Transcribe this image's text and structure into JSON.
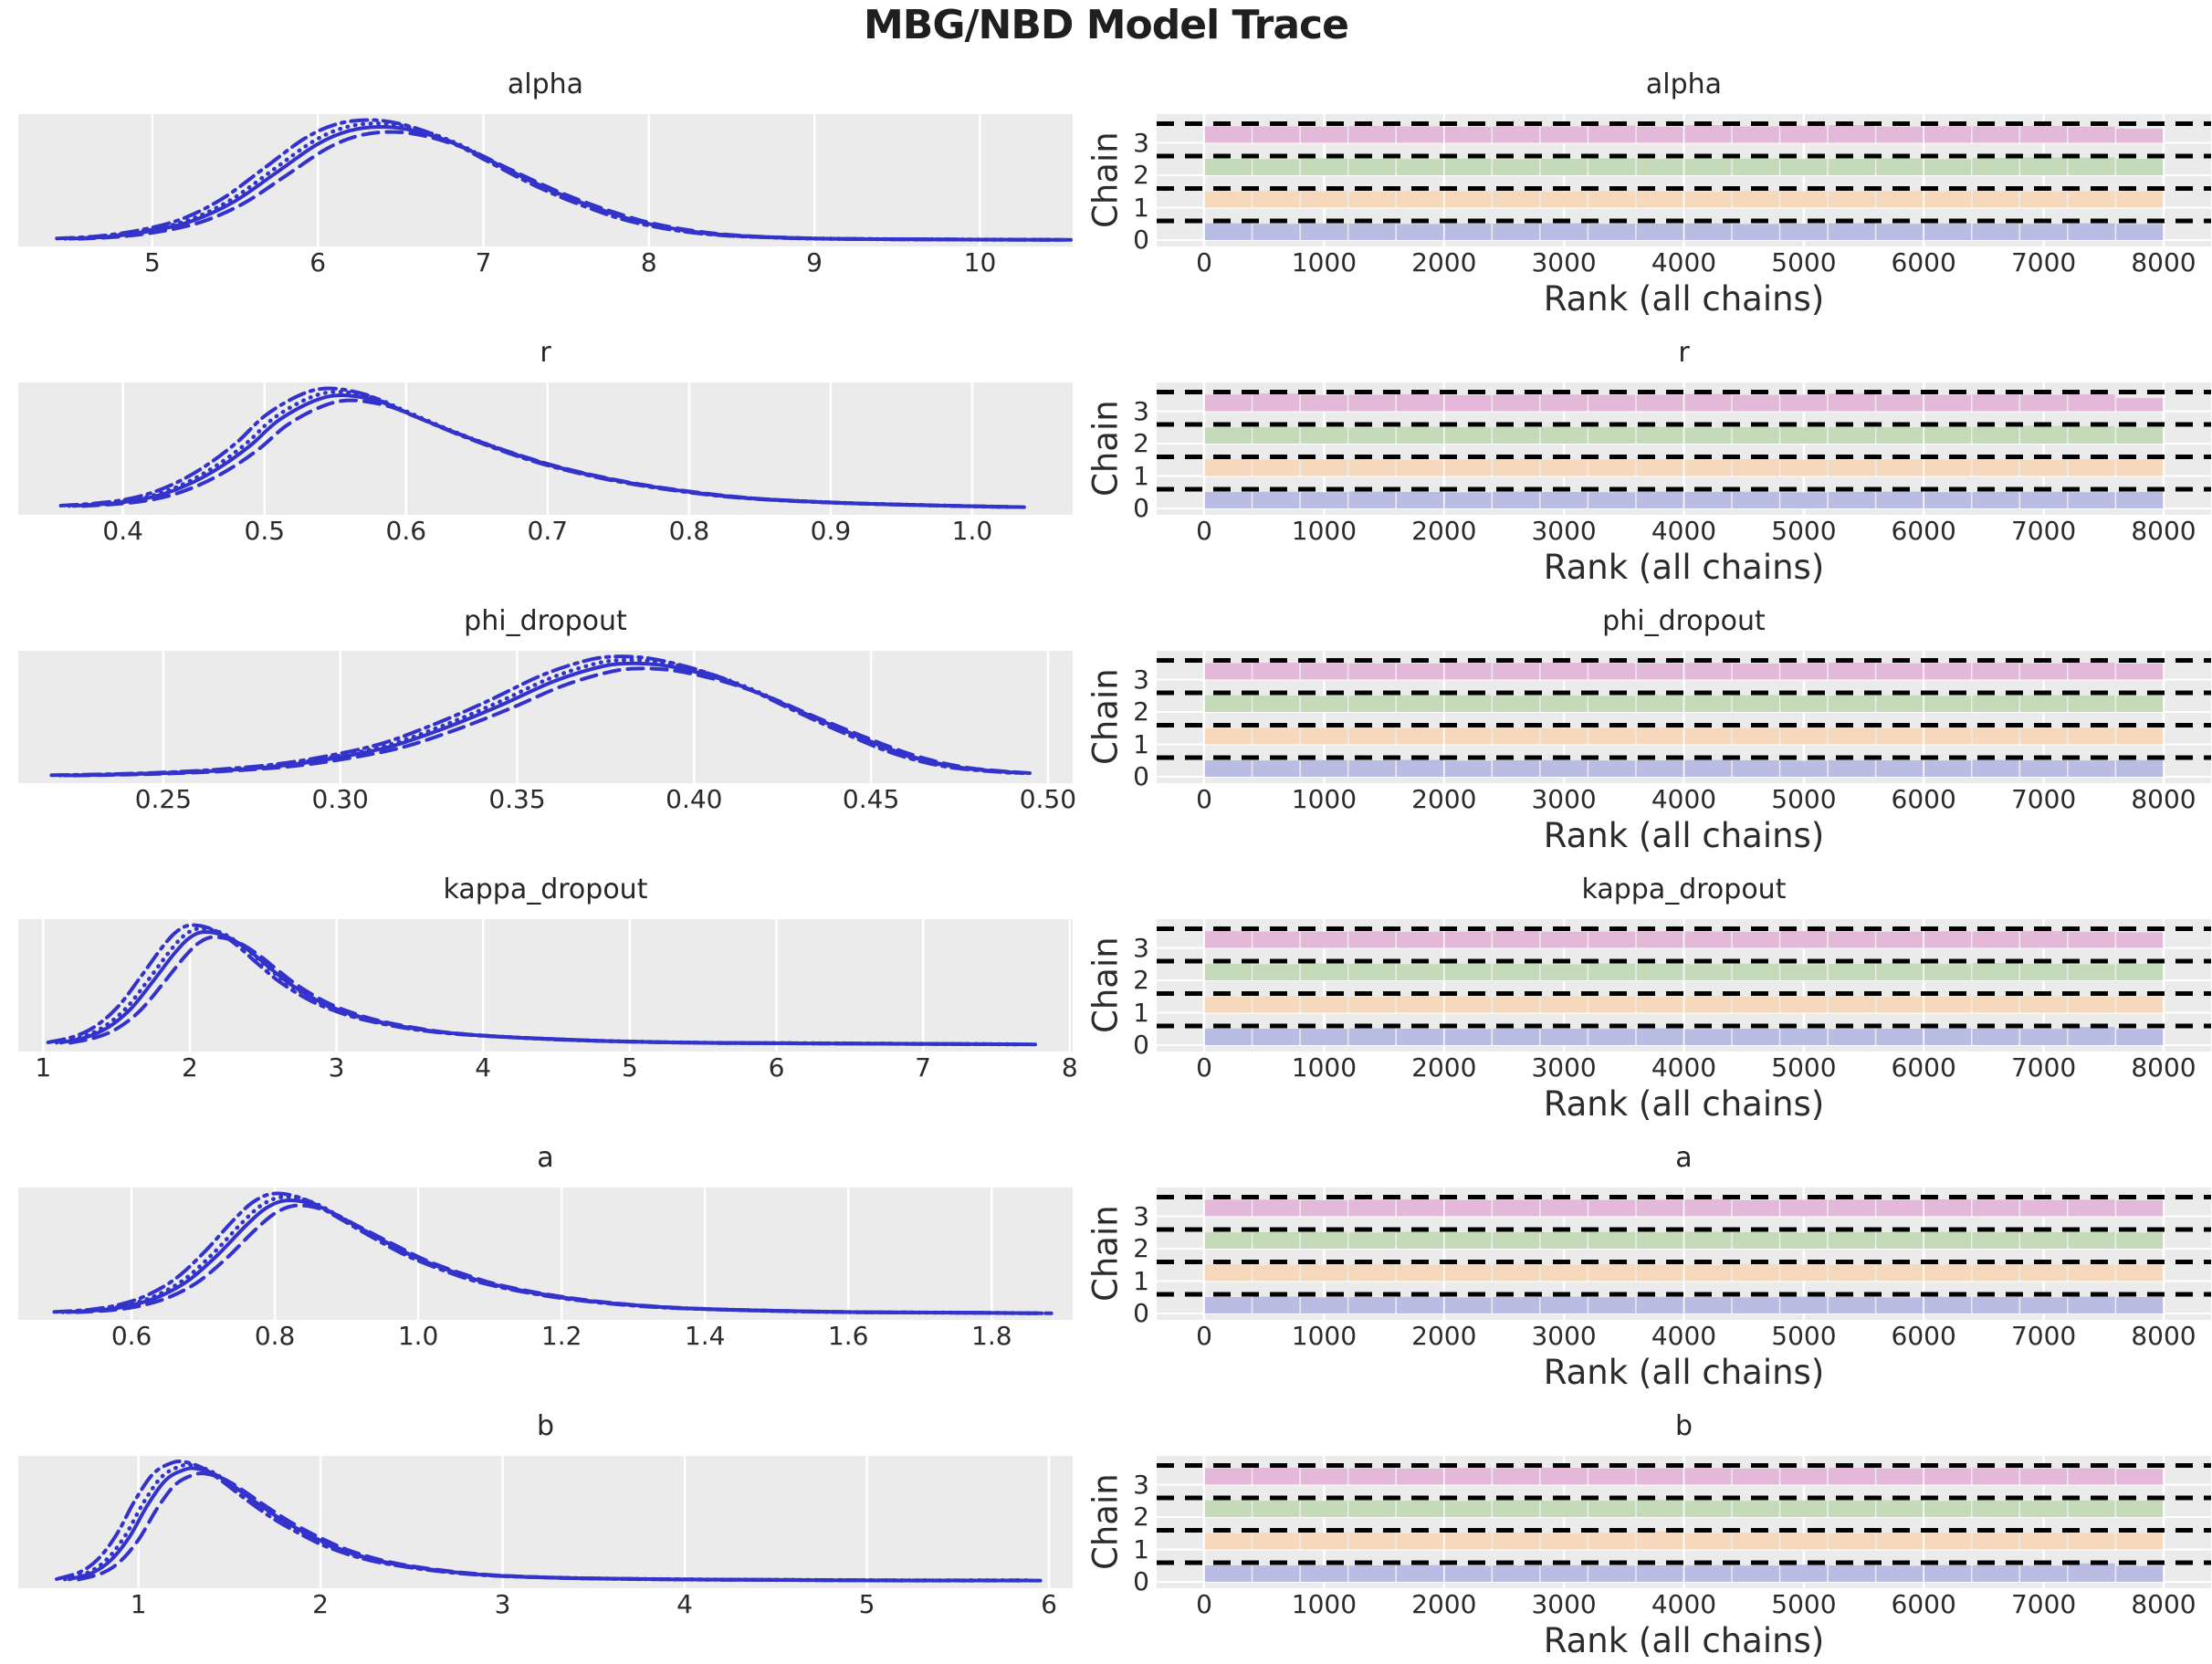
{
  "figure": {
    "title": "MBG/NBD Model Trace",
    "background_color": "#ffffff",
    "axes_background_color": "#ebebeb",
    "grid_color": "#ffffff",
    "text_color": "#262626",
    "kde_line_color": "#3333cc",
    "rank_reference_line_color": "#000000",
    "xlabel_rank": "Rank (all chains)",
    "ylabel_rank": "Chain",
    "chain_tick_labels": [
      "0",
      "1",
      "2",
      "3"
    ],
    "chain_colors": [
      "#b9bce3",
      "#f6d9bd",
      "#c4dab8",
      "#e4b8d8"
    ],
    "rank_tick_labels": [
      "0",
      "1000",
      "2000",
      "3000",
      "4000",
      "5000",
      "6000",
      "7000",
      "8000"
    ],
    "rank_tick_values": [
      0,
      1000,
      2000,
      3000,
      4000,
      5000,
      6000,
      7000,
      8000
    ],
    "rank_axis": {
      "xmin": -396,
      "xmax": 8396,
      "bins": 20,
      "bin_start": 0,
      "bin_end": 8000
    },
    "chains": [
      {
        "name": "chain-0",
        "style": "solid",
        "dash": "",
        "amp": 1.0,
        "dx": 0.0
      },
      {
        "name": "chain-1",
        "style": "dashed",
        "dash": "17 9",
        "amp": 0.955,
        "dx": 0.009
      },
      {
        "name": "chain-2",
        "style": "dotted",
        "dash": "0.5 8",
        "amp": 1.03,
        "dx": -0.004
      },
      {
        "name": "chain-3",
        "style": "dashdot",
        "dash": "18 7 3.5 7",
        "amp": 1.06,
        "dx": -0.012
      }
    ]
  },
  "chart_data": [
    {
      "type": "kde+rank-histogram",
      "title": "alpha",
      "kde": {
        "xmin": 4.19,
        "xmax": 10.56,
        "tick_labels": [
          "5",
          "6",
          "7",
          "8",
          "9",
          "10"
        ],
        "tick_values": [
          5,
          6,
          7,
          8,
          9,
          10
        ],
        "x": [
          4.5,
          4.75,
          5.0,
          5.25,
          5.5,
          5.75,
          6.0,
          6.2,
          6.4,
          6.6,
          6.85,
          7.1,
          7.4,
          7.7,
          8.0,
          8.4,
          8.9,
          9.5,
          10.5
        ],
        "y": [
          0.02,
          0.04,
          0.09,
          0.18,
          0.35,
          0.6,
          0.85,
          0.97,
          1.0,
          0.96,
          0.84,
          0.66,
          0.45,
          0.28,
          0.15,
          0.06,
          0.025,
          0.015,
          0.01
        ]
      },
      "rank_heights": [
        [
          1.02,
          0.99,
          1.01,
          1.0,
          0.98,
          1.01,
          1.0,
          1.02,
          0.99,
          1.0,
          1.01,
          0.98,
          1.0,
          1.02,
          0.99,
          1.01,
          1.0,
          0.99,
          1.02,
          0.98
        ],
        [
          0.99,
          1.02,
          1.0,
          0.98,
          1.01,
          1.0,
          1.02,
          0.99,
          1.01,
          1.0,
          0.98,
          1.02,
          1.0,
          0.99,
          1.01,
          1.0,
          1.03,
          0.98,
          1.0,
          0.99
        ],
        [
          1.0,
          0.98,
          1.02,
          1.0,
          0.99,
          1.01,
          0.98,
          1.0,
          1.02,
          0.99,
          1.0,
          1.01,
          0.99,
          1.0,
          1.02,
          0.98,
          1.05,
          1.09,
          1.08,
          1.0
        ],
        [
          1.01,
          1.0,
          0.99,
          1.02,
          1.0,
          0.98,
          1.01,
          1.0,
          1.06,
          0.99,
          1.07,
          1.0,
          1.04,
          1.08,
          0.99,
          1.01,
          1.0,
          1.02,
          0.99,
          0.86
        ]
      ]
    },
    {
      "type": "kde+rank-histogram",
      "title": "r",
      "kde": {
        "xmin": 0.326,
        "xmax": 1.071,
        "tick_labels": [
          "0.4",
          "0.5",
          "0.6",
          "0.7",
          "0.8",
          "0.9",
          "1.0"
        ],
        "tick_values": [
          0.4,
          0.5,
          0.6,
          0.7,
          0.8,
          0.9,
          1.0
        ],
        "x": [
          0.365,
          0.39,
          0.41,
          0.43,
          0.45,
          0.47,
          0.49,
          0.51,
          0.535,
          0.555,
          0.58,
          0.6,
          0.625,
          0.65,
          0.68,
          0.71,
          0.75,
          0.79,
          0.84,
          0.9,
          0.97,
          1.03
        ],
        "y": [
          0.03,
          0.05,
          0.08,
          0.14,
          0.24,
          0.38,
          0.56,
          0.78,
          0.95,
          1.0,
          0.95,
          0.85,
          0.72,
          0.6,
          0.47,
          0.36,
          0.25,
          0.17,
          0.1,
          0.06,
          0.035,
          0.02
        ]
      },
      "rank_heights": [
        [
          1.0,
          1.01,
          0.99,
          1.02,
          1.0,
          0.98,
          1.01,
          1.0,
          0.99,
          1.02,
          1.0,
          1.01,
          0.98,
          1.0,
          1.02,
          0.99,
          1.0,
          1.01,
          0.99,
          1.0
        ],
        [
          1.02,
          0.99,
          1.0,
          1.01,
          0.98,
          1.0,
          1.02,
          0.99,
          1.01,
          1.0,
          0.99,
          1.02,
          1.0,
          0.98,
          1.01,
          1.0,
          1.02,
          0.99,
          1.0,
          1.01
        ],
        [
          0.99,
          1.01,
          1.0,
          0.98,
          1.02,
          1.0,
          0.99,
          1.01,
          1.0,
          1.02,
          0.98,
          1.0,
          1.01,
          0.99,
          1.0,
          1.02,
          1.0,
          1.08,
          1.06,
          0.99
        ],
        [
          1.01,
          1.08,
          0.99,
          1.0,
          1.02,
          0.98,
          1.0,
          1.01,
          0.99,
          1.0,
          1.05,
          0.99,
          1.0,
          1.06,
          1.0,
          0.99,
          1.01,
          1.0,
          1.02,
          0.8
        ]
      ]
    },
    {
      "type": "kde+rank-histogram",
      "title": "phi_dropout",
      "kde": {
        "xmin": 0.209,
        "xmax": 0.507,
        "tick_labels": [
          "0.25",
          "0.30",
          "0.35",
          "0.40",
          "0.45",
          "0.50"
        ],
        "tick_values": [
          0.25,
          0.3,
          0.35,
          0.4,
          0.45,
          0.5
        ],
        "x": [
          0.222,
          0.24,
          0.255,
          0.27,
          0.285,
          0.3,
          0.315,
          0.33,
          0.345,
          0.36,
          0.372,
          0.38,
          0.39,
          0.4,
          0.41,
          0.42,
          0.43,
          0.445,
          0.46,
          0.475,
          0.493
        ],
        "y": [
          0.02,
          0.03,
          0.045,
          0.07,
          0.11,
          0.18,
          0.28,
          0.44,
          0.63,
          0.84,
          0.96,
          1.0,
          0.99,
          0.93,
          0.84,
          0.72,
          0.58,
          0.38,
          0.2,
          0.09,
          0.04
        ]
      },
      "rank_heights": [
        [
          1.0,
          0.99,
          1.01,
          1.0,
          1.02,
          0.98,
          1.0,
          1.01,
          0.99,
          1.0,
          1.02,
          1.0,
          0.98,
          1.01,
          1.0,
          0.99,
          1.02,
          1.0,
          0.99,
          1.01
        ],
        [
          0.98,
          1.01,
          1.0,
          1.02,
          0.99,
          1.0,
          1.01,
          0.98,
          1.0,
          1.02,
          0.99,
          1.0,
          1.01,
          1.0,
          0.98,
          1.02,
          1.0,
          0.99,
          1.01,
          1.0
        ],
        [
          1.01,
          1.0,
          0.98,
          1.0,
          1.01,
          1.02,
          0.99,
          1.0,
          0.98,
          1.01,
          1.0,
          1.02,
          0.99,
          1.0,
          1.01,
          0.98,
          1.0,
          1.02,
          1.0,
          0.99
        ],
        [
          1.0,
          1.02,
          1.0,
          0.99,
          0.98,
          1.01,
          1.0,
          1.02,
          1.0,
          0.99,
          1.01,
          0.98,
          1.0,
          1.02,
          0.99,
          1.0,
          1.01,
          0.99,
          1.03,
          0.97
        ]
      ]
    },
    {
      "type": "kde+rank-histogram",
      "title": "kappa_dropout",
      "kde": {
        "xmin": 0.83,
        "xmax": 8.02,
        "tick_labels": [
          "1",
          "2",
          "3",
          "4",
          "5",
          "6",
          "7",
          "8"
        ],
        "tick_values": [
          1,
          2,
          3,
          4,
          5,
          6,
          7,
          8
        ],
        "x": [
          1.12,
          1.3,
          1.45,
          1.6,
          1.75,
          1.9,
          2.0,
          2.1,
          2.25,
          2.4,
          2.55,
          2.7,
          2.9,
          3.1,
          3.3,
          3.6,
          3.9,
          4.3,
          4.8,
          5.4,
          6.0,
          6.8,
          7.7
        ],
        "y": [
          0.03,
          0.08,
          0.17,
          0.33,
          0.57,
          0.82,
          0.95,
          1.0,
          0.96,
          0.84,
          0.68,
          0.53,
          0.38,
          0.28,
          0.21,
          0.14,
          0.1,
          0.07,
          0.045,
          0.03,
          0.025,
          0.02,
          0.015
        ]
      },
      "rank_heights": [
        [
          1.01,
          1.0,
          0.99,
          1.02,
          1.0,
          0.98,
          1.01,
          1.0,
          0.99,
          1.02,
          0.98,
          1.0,
          1.01,
          0.99,
          1.0,
          1.02,
          1.0,
          0.99,
          1.1,
          0.98
        ],
        [
          0.99,
          1.01,
          1.0,
          0.98,
          1.02,
          1.0,
          0.99,
          1.01,
          1.0,
          0.98,
          1.02,
          0.99,
          1.0,
          1.01,
          0.99,
          1.0,
          1.02,
          1.0,
          0.99,
          1.01
        ],
        [
          1.0,
          0.98,
          1.02,
          1.0,
          0.99,
          1.01,
          1.0,
          0.98,
          1.02,
          1.0,
          0.99,
          1.01,
          0.98,
          1.0,
          1.02,
          0.99,
          1.05,
          1.0,
          0.98,
          1.0
        ],
        [
          1.02,
          1.0,
          0.99,
          1.01,
          0.98,
          1.0,
          1.04,
          0.99,
          1.0,
          1.01,
          1.0,
          0.98,
          1.02,
          1.0,
          0.99,
          1.01,
          1.0,
          1.02,
          0.98,
          0.95
        ]
      ]
    },
    {
      "type": "kde+rank-histogram",
      "title": "a",
      "kde": {
        "xmin": 0.442,
        "xmax": 1.913,
        "tick_labels": [
          "0.6",
          "0.8",
          "1.0",
          "1.2",
          "1.4",
          "1.6",
          "1.8"
        ],
        "tick_values": [
          0.6,
          0.8,
          1.0,
          1.2,
          1.4,
          1.6,
          1.8
        ],
        "x": [
          0.51,
          0.56,
          0.6,
          0.64,
          0.68,
          0.72,
          0.76,
          0.79,
          0.82,
          0.86,
          0.9,
          0.95,
          1.0,
          1.05,
          1.1,
          1.17,
          1.25,
          1.35,
          1.47,
          1.6,
          1.75,
          1.87
        ],
        "y": [
          0.02,
          0.04,
          0.08,
          0.16,
          0.3,
          0.52,
          0.78,
          0.94,
          1.0,
          0.95,
          0.82,
          0.65,
          0.49,
          0.37,
          0.27,
          0.18,
          0.11,
          0.06,
          0.035,
          0.02,
          0.015,
          0.01
        ]
      },
      "rank_heights": [
        [
          1.0,
          1.02,
          0.99,
          1.0,
          1.01,
          0.98,
          1.0,
          1.02,
          0.99,
          1.01,
          1.0,
          0.99,
          1.02,
          1.0,
          0.98,
          1.01,
          1.0,
          0.99,
          1.02,
          1.0
        ],
        [
          1.01,
          0.99,
          1.0,
          1.02,
          0.98,
          1.0,
          1.01,
          0.99,
          1.02,
          1.0,
          0.99,
          1.01,
          1.0,
          0.98,
          1.02,
          1.0,
          0.99,
          1.01,
          1.0,
          0.99
        ],
        [
          0.99,
          1.0,
          1.01,
          0.98,
          1.02,
          1.0,
          0.99,
          1.0,
          1.01,
          0.99,
          1.02,
          1.0,
          0.98,
          1.01,
          1.0,
          1.02,
          0.99,
          1.0,
          1.01,
          0.98
        ],
        [
          1.0,
          1.01,
          0.98,
          1.0,
          1.02,
          0.99,
          1.0,
          1.01,
          0.99,
          1.0,
          1.02,
          0.98,
          1.0,
          1.01,
          0.99,
          1.02,
          1.0,
          0.99,
          1.01,
          0.97
        ]
      ]
    },
    {
      "type": "kde+rank-histogram",
      "title": "b",
      "kde": {
        "xmin": 0.34,
        "xmax": 6.13,
        "tick_labels": [
          "1",
          "2",
          "3",
          "4",
          "5",
          "6"
        ],
        "tick_values": [
          1,
          2,
          3,
          4,
          5,
          6
        ],
        "x": [
          0.62,
          0.75,
          0.85,
          0.95,
          1.05,
          1.15,
          1.25,
          1.32,
          1.42,
          1.52,
          1.65,
          1.8,
          1.95,
          2.1,
          2.3,
          2.5,
          2.75,
          3.0,
          3.4,
          3.9,
          4.5,
          5.2,
          5.9
        ],
        "y": [
          0.03,
          0.09,
          0.2,
          0.4,
          0.68,
          0.9,
          0.99,
          1.0,
          0.95,
          0.85,
          0.7,
          0.54,
          0.41,
          0.3,
          0.2,
          0.14,
          0.09,
          0.06,
          0.04,
          0.03,
          0.025,
          0.02,
          0.02
        ]
      },
      "rank_heights": [
        [
          1.0,
          0.99,
          1.01,
          1.0,
          1.02,
          0.98,
          1.0,
          1.01,
          0.99,
          1.0,
          1.01,
          0.99,
          1.04,
          1.0,
          0.98,
          1.01,
          1.0,
          0.99,
          1.12,
          0.97
        ],
        [
          0.99,
          1.01,
          1.0,
          1.02,
          0.98,
          1.0,
          1.01,
          0.99,
          1.0,
          1.1,
          0.99,
          1.01,
          1.0,
          0.98,
          1.02,
          1.0,
          0.99,
          1.01,
          1.0,
          0.99
        ],
        [
          1.02,
          1.0,
          0.99,
          1.01,
          1.0,
          0.98,
          1.02,
          1.0,
          0.99,
          1.04,
          1.0,
          0.99,
          1.01,
          1.0,
          1.02,
          0.98,
          1.0,
          0.99,
          1.01,
          1.0
        ],
        [
          1.0,
          1.02,
          0.99,
          1.0,
          0.98,
          1.01,
          1.0,
          1.02,
          0.99,
          1.0,
          1.01,
          0.98,
          1.0,
          1.02,
          0.99,
          1.0,
          1.01,
          0.99,
          1.0,
          0.96
        ]
      ]
    }
  ]
}
